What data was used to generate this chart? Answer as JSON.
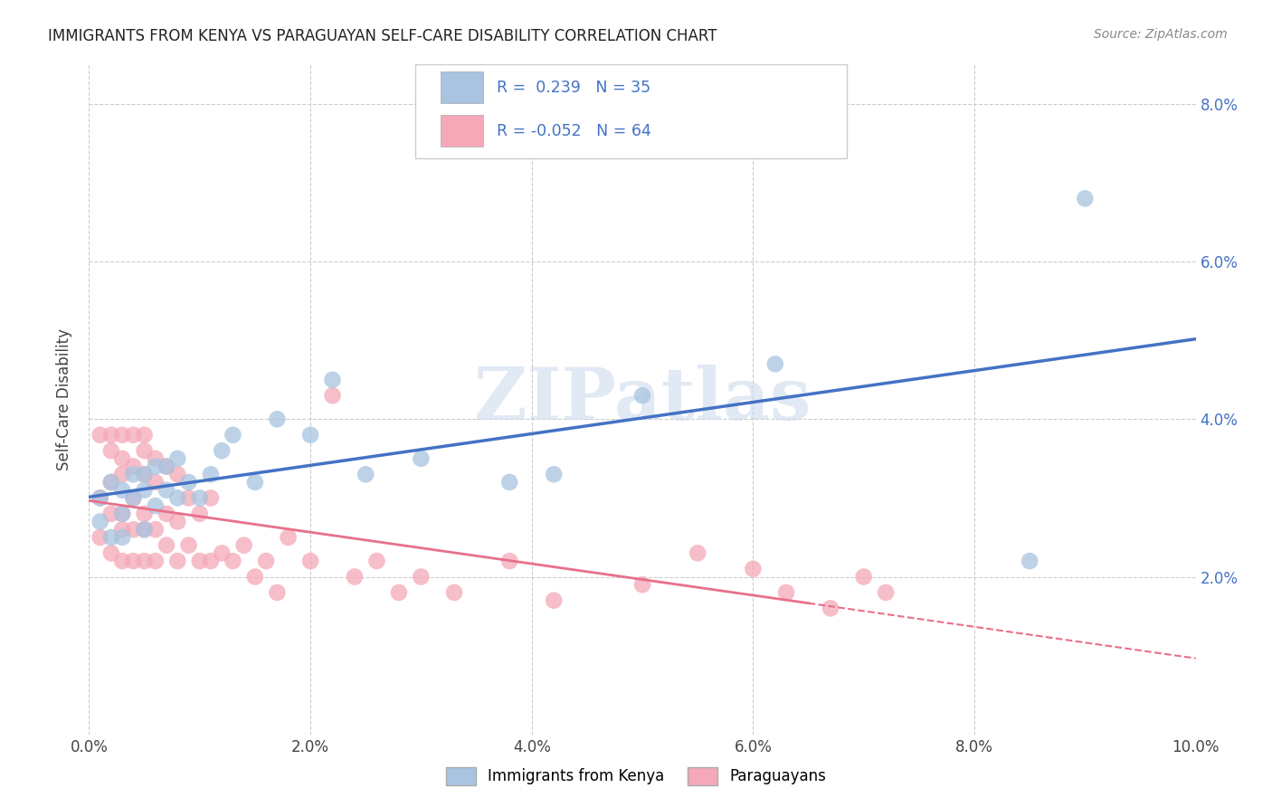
{
  "title": "IMMIGRANTS FROM KENYA VS PARAGUAYAN SELF-CARE DISABILITY CORRELATION CHART",
  "source": "Source: ZipAtlas.com",
  "ylabel": "Self-Care Disability",
  "xlim": [
    0.0,
    0.1
  ],
  "ylim": [
    0.0,
    0.085
  ],
  "xticks": [
    0.0,
    0.02,
    0.04,
    0.06,
    0.08,
    0.1
  ],
  "yticks": [
    0.0,
    0.02,
    0.04,
    0.06,
    0.08
  ],
  "right_ytick_labels": [
    "",
    "2.0%",
    "4.0%",
    "6.0%",
    "8.0%"
  ],
  "xtick_labels": [
    "0.0%",
    "2.0%",
    "4.0%",
    "6.0%",
    "8.0%",
    "10.0%"
  ],
  "legend_label1": "Immigrants from Kenya",
  "legend_label2": "Paraguayans",
  "R1": "0.239",
  "N1": "35",
  "R2": "-0.052",
  "N2": "64",
  "color_kenya": "#a8c4e0",
  "color_paraguay": "#f4a8b8",
  "line_color_kenya": "#4472c4",
  "line_color_paraguay": "#e8708a",
  "watermark": "ZIPatlas",
  "background_color": "#ffffff",
  "kenya_x": [
    0.001,
    0.001,
    0.002,
    0.002,
    0.003,
    0.003,
    0.003,
    0.004,
    0.004,
    0.005,
    0.005,
    0.005,
    0.006,
    0.006,
    0.007,
    0.007,
    0.008,
    0.008,
    0.009,
    0.01,
    0.011,
    0.012,
    0.013,
    0.015,
    0.017,
    0.02,
    0.022,
    0.025,
    0.03,
    0.038,
    0.042,
    0.05,
    0.062,
    0.085,
    0.09
  ],
  "kenya_y": [
    0.027,
    0.03,
    0.025,
    0.032,
    0.028,
    0.025,
    0.031,
    0.03,
    0.033,
    0.026,
    0.031,
    0.033,
    0.029,
    0.034,
    0.031,
    0.034,
    0.03,
    0.035,
    0.032,
    0.03,
    0.033,
    0.036,
    0.038,
    0.032,
    0.04,
    0.038,
    0.045,
    0.033,
    0.035,
    0.032,
    0.033,
    0.043,
    0.047,
    0.022,
    0.068
  ],
  "paraguay_x": [
    0.001,
    0.001,
    0.001,
    0.002,
    0.002,
    0.002,
    0.002,
    0.002,
    0.003,
    0.003,
    0.003,
    0.003,
    0.003,
    0.003,
    0.004,
    0.004,
    0.004,
    0.004,
    0.004,
    0.005,
    0.005,
    0.005,
    0.005,
    0.005,
    0.005,
    0.006,
    0.006,
    0.006,
    0.006,
    0.007,
    0.007,
    0.007,
    0.008,
    0.008,
    0.008,
    0.009,
    0.009,
    0.01,
    0.01,
    0.011,
    0.011,
    0.012,
    0.013,
    0.014,
    0.015,
    0.016,
    0.017,
    0.018,
    0.02,
    0.022,
    0.024,
    0.026,
    0.028,
    0.03,
    0.033,
    0.038,
    0.042,
    0.05,
    0.055,
    0.06,
    0.063,
    0.067,
    0.07,
    0.072
  ],
  "paraguay_y": [
    0.025,
    0.03,
    0.038,
    0.023,
    0.028,
    0.032,
    0.036,
    0.038,
    0.022,
    0.026,
    0.028,
    0.033,
    0.035,
    0.038,
    0.022,
    0.026,
    0.03,
    0.034,
    0.038,
    0.022,
    0.026,
    0.028,
    0.033,
    0.036,
    0.038,
    0.022,
    0.026,
    0.032,
    0.035,
    0.024,
    0.028,
    0.034,
    0.022,
    0.027,
    0.033,
    0.024,
    0.03,
    0.022,
    0.028,
    0.022,
    0.03,
    0.023,
    0.022,
    0.024,
    0.02,
    0.022,
    0.018,
    0.025,
    0.022,
    0.043,
    0.02,
    0.022,
    0.018,
    0.02,
    0.018,
    0.022,
    0.017,
    0.019,
    0.023,
    0.021,
    0.018,
    0.016,
    0.02,
    0.018
  ]
}
